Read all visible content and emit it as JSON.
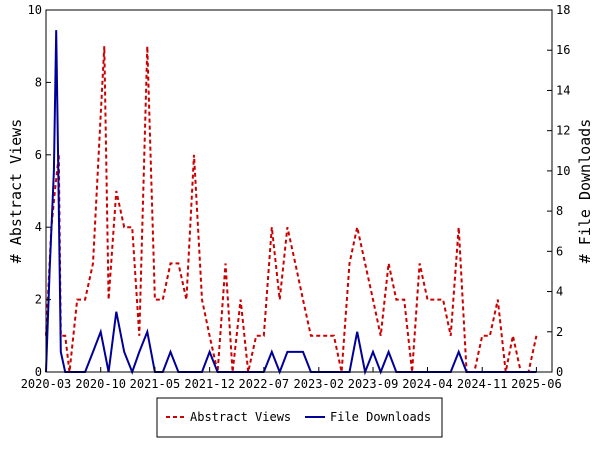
{
  "chart_data": {
    "type": "line",
    "title": "",
    "ylabel": "# Abstract Views",
    "y2label": "# File Downloads",
    "ylim": [
      0,
      10
    ],
    "y2lim": [
      0,
      18
    ],
    "yticks": [
      0,
      2,
      4,
      6,
      8,
      10
    ],
    "y2ticks": [
      0,
      2,
      4,
      6,
      8,
      10,
      12,
      14,
      16,
      18
    ],
    "xlim": [
      "2020-03",
      "2025-08"
    ],
    "xticks": [
      "2020-03",
      "2020-10",
      "2021-05",
      "2021-12",
      "2022-07",
      "2023-02",
      "2023-09",
      "2024-04",
      "2024-11",
      "2025-06"
    ],
    "grid": false,
    "legend_position": "bottom-center",
    "series": [
      {
        "name": "Abstract Views",
        "axis": "left",
        "color": "#cc0000",
        "dash": "dashed",
        "points": [
          [
            "2020-03-01",
            1
          ],
          [
            "2020-03-22",
            4
          ],
          [
            "2020-04-05",
            5
          ],
          [
            "2020-04-20",
            6
          ],
          [
            "2020-04-28",
            1
          ],
          [
            "2020-05-15",
            1
          ],
          [
            "2020-06-01",
            0
          ],
          [
            "2020-07-01",
            2
          ],
          [
            "2020-08-01",
            2
          ],
          [
            "2020-09-01",
            3
          ],
          [
            "2020-10-15",
            9
          ],
          [
            "2020-11-01",
            2
          ],
          [
            "2020-12-01",
            5
          ],
          [
            "2021-01-01",
            4
          ],
          [
            "2021-02-01",
            4
          ],
          [
            "2021-03-01",
            1
          ],
          [
            "2021-04-01",
            9
          ],
          [
            "2021-05-01",
            2
          ],
          [
            "2021-06-01",
            2
          ],
          [
            "2021-07-01",
            3
          ],
          [
            "2021-08-01",
            3
          ],
          [
            "2021-09-01",
            2
          ],
          [
            "2021-10-01",
            6
          ],
          [
            "2021-11-01",
            2
          ],
          [
            "2021-12-01",
            1
          ],
          [
            "2022-01-01",
            0
          ],
          [
            "2022-02-01",
            3
          ],
          [
            "2022-03-01",
            0
          ],
          [
            "2022-04-01",
            2
          ],
          [
            "2022-05-01",
            0
          ],
          [
            "2022-06-01",
            1
          ],
          [
            "2022-07-01",
            1
          ],
          [
            "2022-08-01",
            4
          ],
          [
            "2022-09-01",
            2
          ],
          [
            "2022-10-01",
            4
          ],
          [
            "2022-11-01",
            3
          ],
          [
            "2022-12-01",
            2
          ],
          [
            "2023-01-01",
            1
          ],
          [
            "2023-02-01",
            1
          ],
          [
            "2023-03-01",
            1
          ],
          [
            "2023-04-01",
            1
          ],
          [
            "2023-05-01",
            0
          ],
          [
            "2023-06-01",
            3
          ],
          [
            "2023-07-01",
            4
          ],
          [
            "2023-08-01",
            3
          ],
          [
            "2023-09-01",
            2
          ],
          [
            "2023-10-01",
            1
          ],
          [
            "2023-11-01",
            3
          ],
          [
            "2023-12-01",
            2
          ],
          [
            "2024-01-01",
            2
          ],
          [
            "2024-02-01",
            0
          ],
          [
            "2024-03-01",
            3
          ],
          [
            "2024-04-01",
            2
          ],
          [
            "2024-05-01",
            2
          ],
          [
            "2024-06-01",
            2
          ],
          [
            "2024-07-01",
            1
          ],
          [
            "2024-08-01",
            4
          ],
          [
            "2024-09-01",
            0
          ],
          [
            "2024-10-01",
            0
          ],
          [
            "2024-11-01",
            1
          ],
          [
            "2024-12-01",
            1
          ],
          [
            "2025-01-01",
            2
          ],
          [
            "2025-02-01",
            0
          ],
          [
            "2025-03-01",
            1
          ],
          [
            "2025-04-01",
            0
          ],
          [
            "2025-05-01",
            0
          ],
          [
            "2025-06-01",
            1
          ]
        ]
      },
      {
        "name": "File Downloads",
        "axis": "right",
        "color": "#000099",
        "dash": "solid",
        "points": [
          [
            "2020-03-01",
            0
          ],
          [
            "2020-03-15",
            5
          ],
          [
            "2020-04-01",
            10
          ],
          [
            "2020-04-10",
            17
          ],
          [
            "2020-04-18",
            10
          ],
          [
            "2020-04-28",
            1
          ],
          [
            "2020-05-15",
            0
          ],
          [
            "2020-06-01",
            0
          ],
          [
            "2020-07-01",
            0
          ],
          [
            "2020-08-01",
            0
          ],
          [
            "2020-09-01",
            1
          ],
          [
            "2020-10-01",
            2
          ],
          [
            "2020-11-01",
            0
          ],
          [
            "2020-12-01",
            3
          ],
          [
            "2021-01-01",
            1
          ],
          [
            "2021-02-01",
            0
          ],
          [
            "2021-03-01",
            1
          ],
          [
            "2021-04-01",
            2
          ],
          [
            "2021-05-01",
            0
          ],
          [
            "2021-06-01",
            0
          ],
          [
            "2021-07-01",
            1
          ],
          [
            "2021-08-01",
            0
          ],
          [
            "2021-09-01",
            0
          ],
          [
            "2021-10-01",
            0
          ],
          [
            "2021-11-01",
            0
          ],
          [
            "2021-12-01",
            1
          ],
          [
            "2022-01-01",
            0
          ],
          [
            "2022-02-01",
            0
          ],
          [
            "2022-03-01",
            0
          ],
          [
            "2022-04-01",
            0
          ],
          [
            "2022-05-01",
            0
          ],
          [
            "2022-06-01",
            0
          ],
          [
            "2022-07-01",
            0
          ],
          [
            "2022-08-01",
            1
          ],
          [
            "2022-09-01",
            0
          ],
          [
            "2022-10-01",
            1
          ],
          [
            "2022-11-01",
            1
          ],
          [
            "2022-12-01",
            1
          ],
          [
            "2023-01-01",
            0
          ],
          [
            "2023-02-01",
            0
          ],
          [
            "2023-03-01",
            0
          ],
          [
            "2023-04-01",
            0
          ],
          [
            "2023-05-01",
            0
          ],
          [
            "2023-06-01",
            0
          ],
          [
            "2023-07-01",
            2
          ],
          [
            "2023-08-01",
            0
          ],
          [
            "2023-09-01",
            1
          ],
          [
            "2023-10-01",
            0
          ],
          [
            "2023-11-01",
            1
          ],
          [
            "2023-12-01",
            0
          ],
          [
            "2024-01-01",
            0
          ],
          [
            "2024-02-01",
            0
          ],
          [
            "2024-03-01",
            0
          ],
          [
            "2024-04-01",
            0
          ],
          [
            "2024-05-01",
            0
          ],
          [
            "2024-06-01",
            0
          ],
          [
            "2024-07-01",
            0
          ],
          [
            "2024-08-01",
            1
          ],
          [
            "2024-09-01",
            0
          ],
          [
            "2024-10-01",
            0
          ],
          [
            "2024-11-01",
            0
          ],
          [
            "2024-12-01",
            0
          ],
          [
            "2025-01-01",
            0
          ],
          [
            "2025-02-01",
            0
          ],
          [
            "2025-03-01",
            0
          ],
          [
            "2025-04-01",
            0
          ],
          [
            "2025-05-01",
            0
          ],
          [
            "2025-06-01",
            0
          ]
        ]
      }
    ]
  }
}
